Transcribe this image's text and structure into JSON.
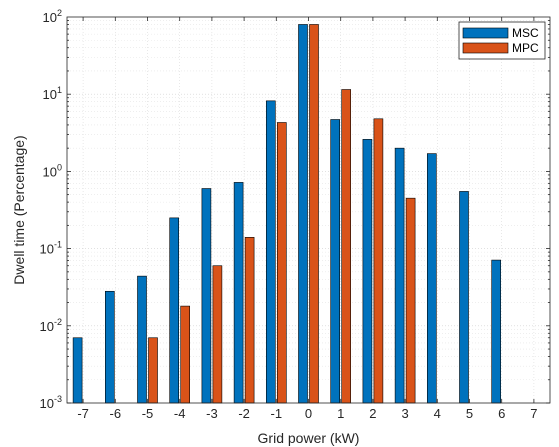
{
  "chart_data": {
    "type": "bar",
    "xlabel": "Grid power (kW)",
    "ylabel": "Dwell time (Percentage)",
    "yscale": "log",
    "ylim": [
      0.001,
      100
    ],
    "xlim": [
      -7.5,
      7.5
    ],
    "categories": [
      "-7",
      "-6",
      "-5",
      "-4",
      "-3",
      "-2",
      "-1",
      "0",
      "1",
      "2",
      "3",
      "4",
      "5",
      "6",
      "7"
    ],
    "x": [
      -7,
      -6,
      -5,
      -4,
      -3,
      -2,
      -1,
      0,
      1,
      2,
      3,
      4,
      5,
      6,
      7
    ],
    "y_ticks": [
      {
        "value": 0.001,
        "base": "10",
        "exp": "-3"
      },
      {
        "value": 0.01,
        "base": "10",
        "exp": "-2"
      },
      {
        "value": 0.1,
        "base": "10",
        "exp": "-1"
      },
      {
        "value": 1,
        "base": "10",
        "exp": "0"
      },
      {
        "value": 10,
        "base": "10",
        "exp": "1"
      },
      {
        "value": 100,
        "base": "10",
        "exp": "2"
      }
    ],
    "grid": true,
    "legend_position": "top-right",
    "series": [
      {
        "name": "MSC",
        "color": "#0072BD",
        "values": [
          0.007,
          0.028,
          0.044,
          0.25,
          0.6,
          0.72,
          8.2,
          80,
          4.7,
          2.6,
          2.0,
          1.7,
          0.55,
          0.071,
          null
        ]
      },
      {
        "name": "MPC",
        "color": "#D95319",
        "values": [
          null,
          null,
          0.007,
          0.018,
          0.06,
          0.14,
          4.3,
          80,
          11.5,
          4.8,
          0.45,
          null,
          null,
          null,
          null
        ]
      }
    ]
  }
}
